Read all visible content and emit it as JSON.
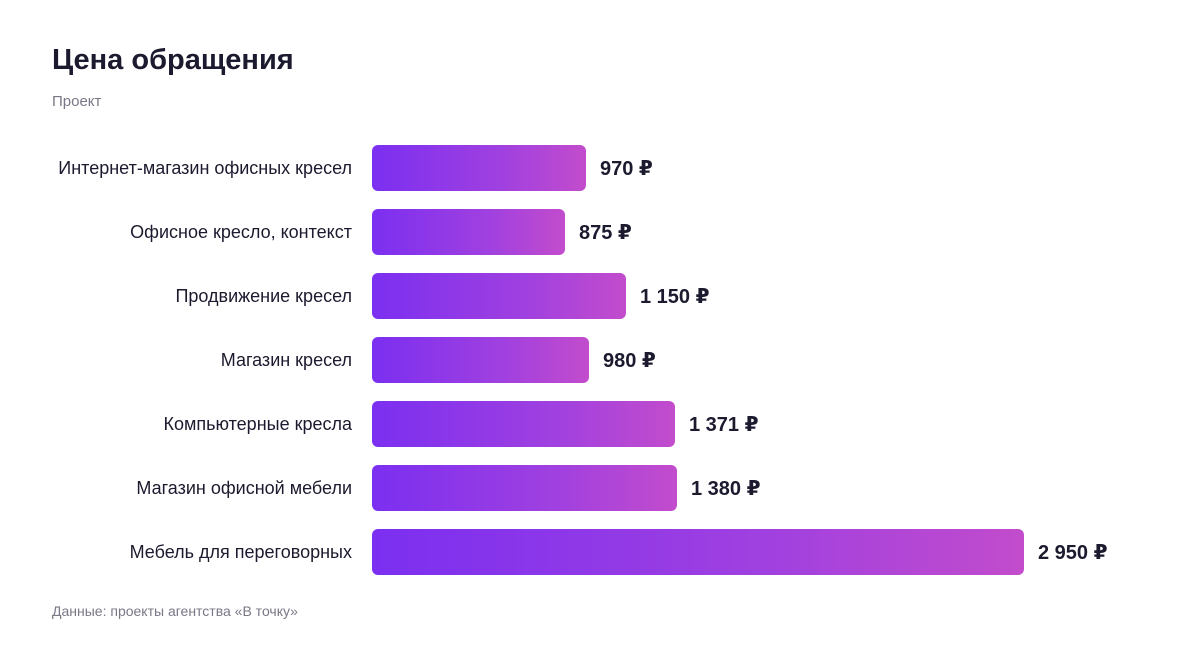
{
  "title": "Цена обращения",
  "subtitle": "Проект",
  "footer": "Данные: проекты агентства «В точку»",
  "colors": {
    "bar_start": "#7b2ff0",
    "bar_end": "#c24ccc",
    "text": "#1b1a2e",
    "muted": "#7a7786"
  },
  "chart_data": {
    "type": "bar",
    "orientation": "horizontal",
    "categories": [
      "Интернет-магазин офисных кресел",
      "Офисное кресло, контекст",
      "Продвижение кресел",
      "Магазин кресел",
      "Компьютерные кресла",
      "Магазин офисной мебели",
      "Мебель для переговорных"
    ],
    "values": [
      970,
      875,
      1150,
      980,
      1371,
      1380,
      2950
    ],
    "value_labels": [
      "970 ₽",
      "875 ₽",
      "1 150 ₽",
      "980 ₽",
      "1 371 ₽",
      "1 380 ₽",
      "2 950 ₽"
    ],
    "unit": "₽",
    "grid": false,
    "legend": "none"
  }
}
